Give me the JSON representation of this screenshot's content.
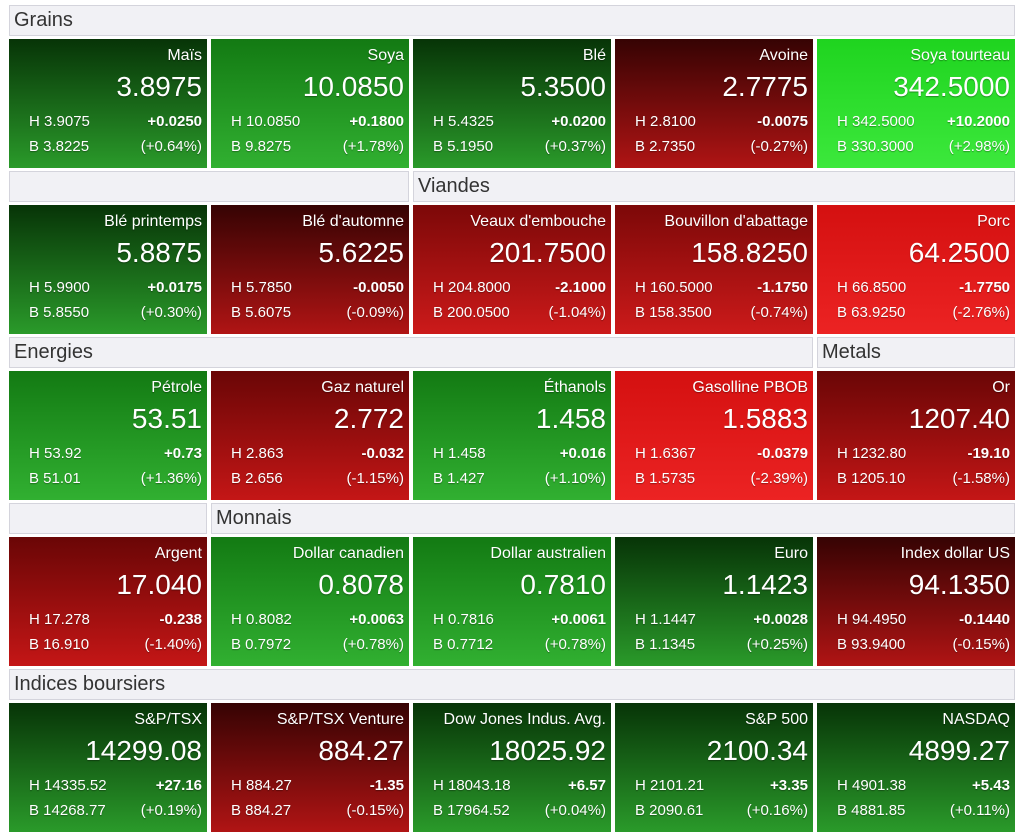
{
  "rows": [
    {
      "headers": [
        "Grains"
      ],
      "tiles": [
        {
          "name": "Maïs",
          "price": "3.8975",
          "high": "H 3.9075",
          "change": "+0.0250",
          "low": "B 3.8225",
          "pct": "(+0.64%)",
          "colors": [
            "#073407",
            "#2a9a2a"
          ]
        },
        {
          "name": "Soya",
          "price": "10.0850",
          "high": "H 10.0850",
          "change": "+0.1800",
          "low": "B 9.8275",
          "pct": "(+1.78%)",
          "colors": [
            "#137a13",
            "#31b031"
          ]
        },
        {
          "name": "Blé",
          "price": "5.3500",
          "high": "H 5.4325",
          "change": "+0.0200",
          "low": "B 5.1950",
          "pct": "(+0.37%)",
          "colors": [
            "#073407",
            "#2a9a2a"
          ]
        },
        {
          "name": "Avoine",
          "price": "2.7775",
          "high": "H 2.8100",
          "change": "-0.0075",
          "low": "B 2.7350",
          "pct": "(-0.27%)",
          "colors": [
            "#360303",
            "#b01414"
          ]
        },
        {
          "name": "Soya tourteau",
          "price": "342.5000",
          "high": "H 342.5000",
          "change": "+10.2000",
          "low": "B 330.3000",
          "pct": "(+2.98%)",
          "colors": [
            "#1fd41f",
            "#3ce83c"
          ]
        }
      ]
    },
    {
      "headers": [
        "Viandes"
      ],
      "tiles": [
        {
          "name": "Blé printemps",
          "price": "5.8875",
          "high": "H 5.9900",
          "change": "+0.0175",
          "low": "B 5.8550",
          "pct": "(+0.30%)",
          "colors": [
            "#073407",
            "#2a9a2a"
          ]
        },
        {
          "name": "Blé d'automne",
          "price": "5.6225",
          "high": "H 5.7850",
          "change": "-0.0050",
          "low": "B 5.6075",
          "pct": "(-0.09%)",
          "colors": [
            "#360303",
            "#b01414"
          ]
        },
        {
          "name": "Veaux d'embouche",
          "price": "201.7500",
          "high": "H 204.8000",
          "change": "-2.1000",
          "low": "B 200.0500",
          "pct": "(-1.04%)",
          "colors": [
            "#7c0808",
            "#cc1a1a"
          ]
        },
        {
          "name": "Bouvillon d'abattage",
          "price": "158.8250",
          "high": "H 160.5000",
          "change": "-1.1750",
          "low": "B 158.3500",
          "pct": "(-0.74%)",
          "colors": [
            "#7c0808",
            "#cc1a1a"
          ]
        },
        {
          "name": "Porc",
          "price": "64.2500",
          "high": "H 66.8500",
          "change": "-1.7750",
          "low": "B 63.9250",
          "pct": "(-2.76%)",
          "colors": [
            "#d41010",
            "#ec2323"
          ]
        }
      ]
    },
    {
      "headers": [
        "Energies",
        "Metals"
      ],
      "tiles": [
        {
          "name": "Pétrole",
          "price": "53.51",
          "high": "H 53.92",
          "change": "+0.73",
          "low": "B 51.01",
          "pct": "(+1.36%)",
          "colors": [
            "#137a13",
            "#31b031"
          ]
        },
        {
          "name": "Gaz naturel",
          "price": "2.772",
          "high": "H 2.863",
          "change": "-0.032",
          "low": "B 2.656",
          "pct": "(-1.15%)",
          "colors": [
            "#6a0606",
            "#c41616"
          ]
        },
        {
          "name": "Éthanols",
          "price": "1.458",
          "high": "H 1.458",
          "change": "+0.016",
          "low": "B 1.427",
          "pct": "(+1.10%)",
          "colors": [
            "#137a13",
            "#31b031"
          ]
        },
        {
          "name": "Gasolline PBOB",
          "price": "1.5883",
          "high": "H 1.6367",
          "change": "-0.0379",
          "low": "B 1.5735",
          "pct": "(-2.39%)",
          "colors": [
            "#d41010",
            "#ec2323"
          ]
        },
        {
          "name": "Or",
          "price": "1207.40",
          "high": "H 1232.80",
          "change": "-19.10",
          "low": "B 1205.10",
          "pct": "(-1.58%)",
          "colors": [
            "#6a0606",
            "#c41616"
          ]
        }
      ]
    },
    {
      "headers": [
        "Monnais"
      ],
      "tiles": [
        {
          "name": "Argent",
          "price": "17.040",
          "high": "H 17.278",
          "change": "-0.238",
          "low": "B 16.910",
          "pct": "(-1.40%)",
          "colors": [
            "#6a0606",
            "#c41616"
          ]
        },
        {
          "name": "Dollar canadien",
          "price": "0.8078",
          "high": "H 0.8082",
          "change": "+0.0063",
          "low": "B 0.7972",
          "pct": "(+0.78%)",
          "colors": [
            "#137a13",
            "#31b031"
          ]
        },
        {
          "name": "Dollar australien",
          "price": "0.7810",
          "high": "H 0.7816",
          "change": "+0.0061",
          "low": "B 0.7712",
          "pct": "(+0.78%)",
          "colors": [
            "#137a13",
            "#31b031"
          ]
        },
        {
          "name": "Euro",
          "price": "1.1423",
          "high": "H 1.1447",
          "change": "+0.0028",
          "low": "B 1.1345",
          "pct": "(+0.25%)",
          "colors": [
            "#073407",
            "#2a9a2a"
          ]
        },
        {
          "name": "Index dollar US",
          "price": "94.1350",
          "high": "H 94.4950",
          "change": "-0.1440",
          "low": "B 93.9400",
          "pct": "(-0.15%)",
          "colors": [
            "#360303",
            "#b01414"
          ]
        }
      ]
    },
    {
      "headers": [
        "Indices boursiers"
      ],
      "tiles": [
        {
          "name": "S&P/TSX",
          "price": "14299.08",
          "high": "H 14335.52",
          "change": "+27.16",
          "low": "B 14268.77",
          "pct": "(+0.19%)",
          "colors": [
            "#073407",
            "#2a9a2a"
          ]
        },
        {
          "name": "S&P/TSX Venture",
          "price": "884.27",
          "high": "H 884.27",
          "change": "-1.35",
          "low": "B 884.27",
          "pct": "(-0.15%)",
          "colors": [
            "#360303",
            "#b01414"
          ]
        },
        {
          "name": "Dow Jones Indus. Avg.",
          "price": "18025.92",
          "high": "H 18043.18",
          "change": "+6.57",
          "low": "B 17964.52",
          "pct": "(+0.04%)",
          "colors": [
            "#073407",
            "#2a9a2a"
          ]
        },
        {
          "name": "S&P 500",
          "price": "2100.34",
          "high": "H 2101.21",
          "change": "+3.35",
          "low": "B 2090.61",
          "pct": "(+0.16%)",
          "colors": [
            "#073407",
            "#2a9a2a"
          ]
        },
        {
          "name": "NASDAQ",
          "price": "4899.27",
          "high": "H 4901.38",
          "change": "+5.43",
          "low": "B 4881.85",
          "pct": "(+0.11%)",
          "colors": [
            "#073407",
            "#2a9a2a"
          ]
        }
      ]
    }
  ]
}
